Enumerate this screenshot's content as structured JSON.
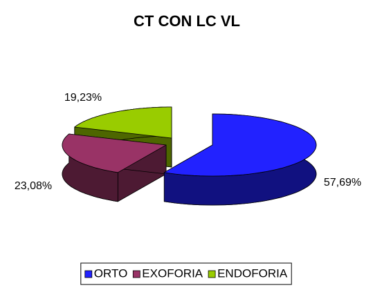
{
  "chart_data": {
    "type": "pie3d",
    "title": "CT CON LC VL",
    "categories": [
      "ORTO",
      "EXOFORIA",
      "ENDOFORIA"
    ],
    "values": [
      57.69,
      23.08,
      19.23
    ],
    "value_labels": [
      "57,69%",
      "23,08%",
      "19,23%"
    ],
    "colors": [
      "#2222ff",
      "#993366",
      "#99cc00"
    ],
    "legend": "bottom"
  }
}
